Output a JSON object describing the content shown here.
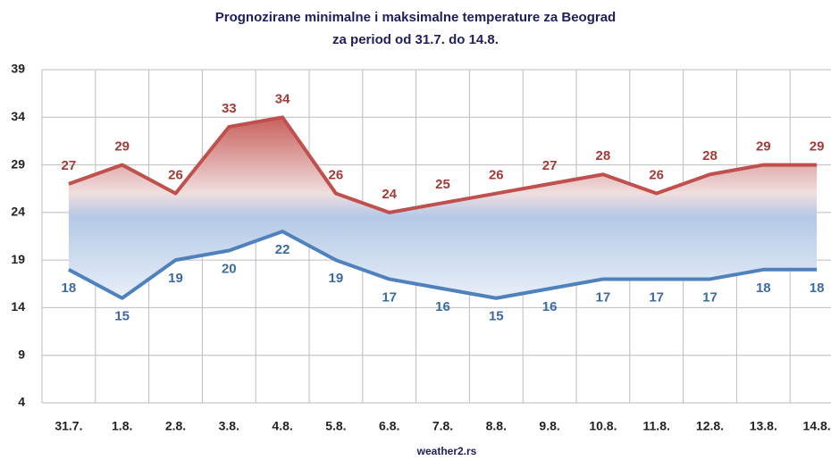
{
  "chart_data": {
    "type": "line",
    "title": "Prognozirane minimalne  i maksimalne  temperature za Beograd",
    "subtitle": "za period od 31.7.  do 14.8.",
    "source": "weather2.rs",
    "categories": [
      "31.7.",
      "1.8.",
      "2.8.",
      "3.8.",
      "4.8.",
      "5.8.",
      "6.8.",
      "7.8.",
      "8.8.",
      "9.8.",
      "10.8.",
      "11.8.",
      "12.8.",
      "13.8.",
      "14.8."
    ],
    "series": [
      {
        "name": "max",
        "color": "#c0504d",
        "values": [
          27,
          29,
          26,
          33,
          34,
          26,
          24,
          25,
          26,
          27,
          28,
          26,
          28,
          29,
          29
        ]
      },
      {
        "name": "min",
        "color": "#4f81bd",
        "values": [
          18,
          15,
          19,
          20,
          22,
          19,
          17,
          16,
          15,
          16,
          17,
          17,
          17,
          18,
          18
        ]
      }
    ],
    "ylim": [
      4,
      39
    ],
    "yticks": [
      4,
      9,
      14,
      19,
      24,
      29,
      34,
      39
    ],
    "grid": true
  }
}
